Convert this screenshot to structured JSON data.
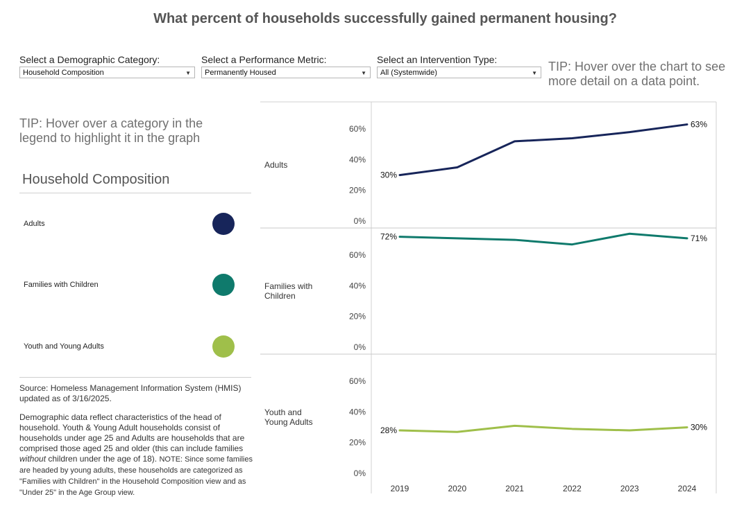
{
  "title": "What percent of households successfully gained permanent housing?",
  "controls": [
    {
      "label": "Select a Demographic Category:",
      "value": "Household Composition"
    },
    {
      "label": "Select a Performance Metric:",
      "value": "Permanently Housed"
    },
    {
      "label": "Select an Intervention Type:",
      "value": "All (Systemwide)"
    }
  ],
  "tip_chart": "TIP: Hover over the chart to see more detail on a data point.",
  "tip_legend": "TIP: Hover over a category in the legend to highlight it in the graph",
  "legend": {
    "title": "Household Composition",
    "items": [
      {
        "label": "Adults",
        "color": "#17255a"
      },
      {
        "label": "Families with Children",
        "color": "#0f7a6c"
      },
      {
        "label": "Youth and Young Adults",
        "color": "#9fbf4a"
      }
    ]
  },
  "source": {
    "line1": "Source: Homeless Management Information System (HMIS) updated as of 3/16/2025.",
    "para_a": "Demographic data reflect characteristics of the head of household. Youth & Young Adult households consist of households under age 25 and Adults are households that are comprised those aged 25 and older (this can include families ",
    "para_em": "without",
    "para_b": " children under the age of 18). ",
    "note": "NOTE: Since some families are headed by young adults, these households are categorized as \"Families with Children\" in the Household Composition view and as \"Under 25\" in the Age Group view."
  },
  "chart_data": {
    "type": "line",
    "x": [
      "2019",
      "2020",
      "2021",
      "2022",
      "2023",
      "2024"
    ],
    "yticks": [
      "0%",
      "20%",
      "40%",
      "60%"
    ],
    "ylim": [
      0,
      75
    ],
    "series": [
      {
        "name": "Adults",
        "label_lines": [
          "Adults"
        ],
        "values": [
          30,
          35,
          52,
          54,
          58,
          63
        ],
        "start_label": "30%",
        "end_label": "63%"
      },
      {
        "name": "Families with Children",
        "label_lines": [
          "Families with",
          "Children"
        ],
        "values": [
          72,
          71,
          70,
          67,
          74,
          71
        ],
        "start_label": "72%",
        "end_label": "71%"
      },
      {
        "name": "Youth and Young Adults",
        "label_lines": [
          "Youth and",
          "Young Adults"
        ],
        "values": [
          28,
          27,
          31,
          29,
          28,
          30
        ],
        "start_label": "28%",
        "end_label": "30%"
      }
    ]
  }
}
